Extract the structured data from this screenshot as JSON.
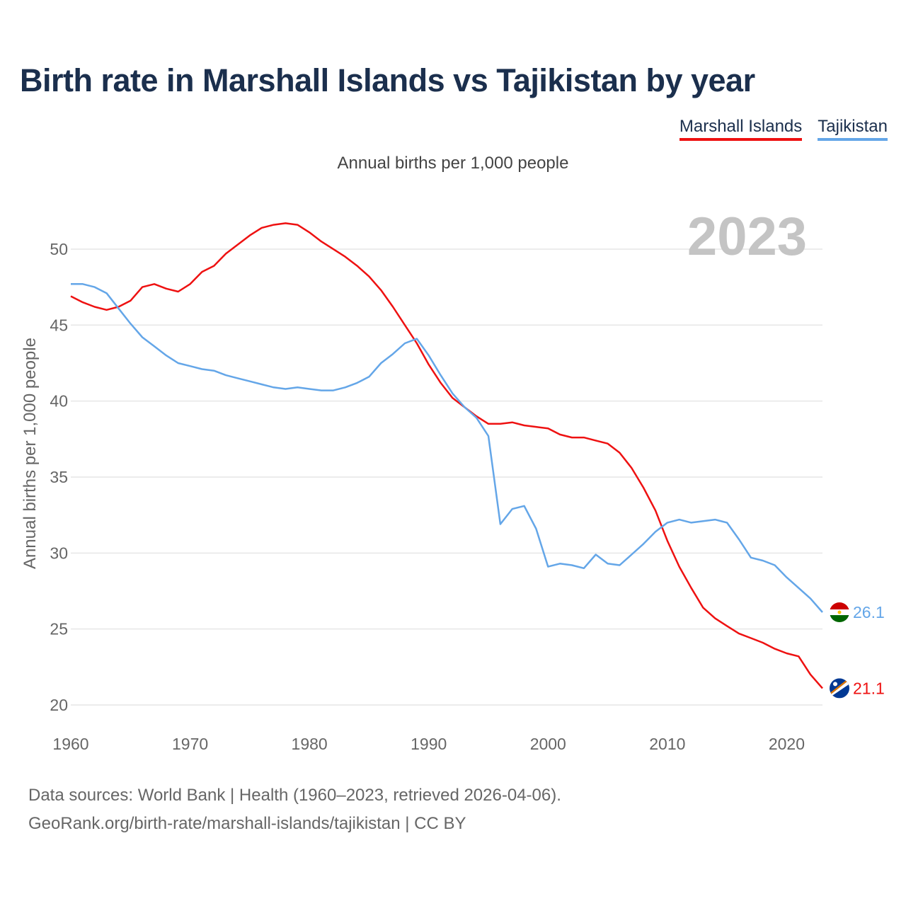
{
  "header": {
    "title": "Birth rate in Marshall Islands vs Tajikistan by year",
    "subtitle": "Annual births per 1,000 people"
  },
  "legend": [
    {
      "label": "Marshall Islands",
      "color": "#ee1111"
    },
    {
      "label": "Tajikistan",
      "color": "#64a6e8"
    }
  ],
  "footer": {
    "line1": "Data sources: World Bank | Health (1960–2023, retrieved 2026-04-06).",
    "line2": "GeoRank.org/birth-rate/marshall-islands/tajikistan | CC BY"
  },
  "chart_data": {
    "type": "line",
    "title": "Birth rate in Marshall Islands vs Tajikistan by year",
    "ylabel": "Annual births per 1,000 people",
    "xlabel": "",
    "year_label": "2023",
    "xlim": [
      1960,
      2023
    ],
    "ylim": [
      20,
      52
    ],
    "x_ticks": [
      1960,
      1970,
      1980,
      1990,
      2000,
      2010,
      2020
    ],
    "y_ticks": [
      20,
      25,
      30,
      35,
      40,
      45,
      50
    ],
    "grid": true,
    "x": [
      1960,
      1961,
      1962,
      1963,
      1964,
      1965,
      1966,
      1967,
      1968,
      1969,
      1970,
      1971,
      1972,
      1973,
      1974,
      1975,
      1976,
      1977,
      1978,
      1979,
      1980,
      1981,
      1982,
      1983,
      1984,
      1985,
      1986,
      1987,
      1988,
      1989,
      1990,
      1991,
      1992,
      1993,
      1994,
      1995,
      1996,
      1997,
      1998,
      1999,
      2000,
      2001,
      2002,
      2003,
      2004,
      2005,
      2006,
      2007,
      2008,
      2009,
      2010,
      2011,
      2012,
      2013,
      2014,
      2015,
      2016,
      2017,
      2018,
      2019,
      2020,
      2021,
      2022,
      2023
    ],
    "series": [
      {
        "name": "Marshall Islands",
        "color": "#ee1111",
        "end_label": "21.1",
        "values": [
          46.9,
          46.5,
          46.2,
          46.0,
          46.2,
          46.6,
          47.5,
          47.7,
          47.4,
          47.2,
          47.7,
          48.5,
          48.9,
          49.7,
          50.3,
          50.9,
          51.4,
          51.6,
          51.7,
          51.6,
          51.1,
          50.5,
          50.0,
          49.5,
          48.9,
          48.2,
          47.3,
          46.2,
          45.0,
          43.8,
          42.4,
          41.2,
          40.2,
          39.6,
          39.0,
          38.5,
          38.5,
          38.6,
          38.4,
          38.3,
          38.2,
          37.8,
          37.6,
          37.6,
          37.4,
          37.2,
          36.6,
          35.6,
          34.3,
          32.8,
          30.8,
          29.1,
          27.7,
          26.4,
          25.7,
          25.2,
          24.7,
          24.4,
          24.1,
          23.7,
          23.4,
          23.2,
          22.0,
          21.1
        ]
      },
      {
        "name": "Tajikistan",
        "color": "#64a6e8",
        "end_label": "26.1",
        "values": [
          47.7,
          47.7,
          47.5,
          47.1,
          46.1,
          45.1,
          44.2,
          43.6,
          43.0,
          42.5,
          42.3,
          42.1,
          42.0,
          41.7,
          41.5,
          41.3,
          41.1,
          40.9,
          40.8,
          40.9,
          40.8,
          40.7,
          40.7,
          40.9,
          41.2,
          41.6,
          42.5,
          43.1,
          43.8,
          44.1,
          43.0,
          41.7,
          40.5,
          39.6,
          38.9,
          37.7,
          31.9,
          32.9,
          33.1,
          31.6,
          29.1,
          29.3,
          29.2,
          29.0,
          29.9,
          29.3,
          29.2,
          29.9,
          30.6,
          31.4,
          32.0,
          32.2,
          32.0,
          32.1,
          32.2,
          32.0,
          30.9,
          29.7,
          29.5,
          29.2,
          28.4,
          27.7,
          27.0,
          26.1
        ]
      }
    ]
  }
}
